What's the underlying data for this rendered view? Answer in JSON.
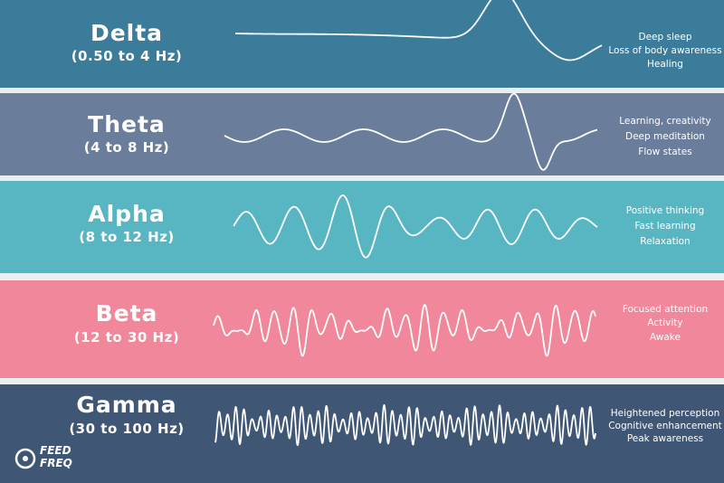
{
  "bands": [
    {
      "name": "Delta",
      "range": "(0.50 to 4 Hz)",
      "effects": [
        "Deep sleep",
        "Loss of body awareness",
        "Healing"
      ]
    },
    {
      "name": "Theta",
      "range": "(4 to 8 Hz)",
      "effects": [
        "Learning, creativity",
        "Deep meditation",
        "Flow states"
      ]
    },
    {
      "name": "Alpha",
      "range": "(8 to 12 Hz)",
      "effects": [
        "Positive thinking",
        "Fast learning",
        "Relaxation"
      ]
    },
    {
      "name": "Beta",
      "range": "(12 to 30 Hz)",
      "effects": [
        "Focused attention",
        "Activity",
        "Awake"
      ]
    },
    {
      "name": "Gamma",
      "range": "(30 to 100 Hz)",
      "effects": [
        "Heightened perception",
        "Cognitive enhancement",
        "Peak awareness"
      ]
    }
  ],
  "logo": [
    "FEED",
    "FREQ"
  ]
}
